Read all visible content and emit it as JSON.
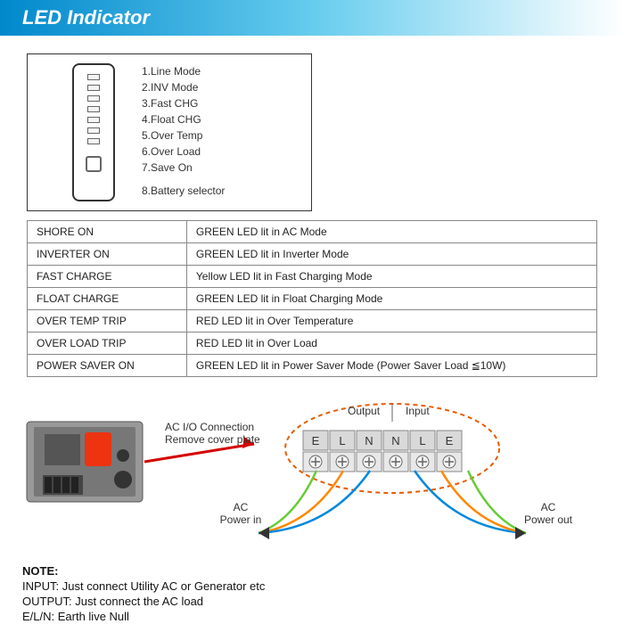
{
  "header": {
    "title": "LED Indicator"
  },
  "legend": {
    "items": [
      "1.Line Mode",
      "2.INV Mode",
      "3.Fast CHG",
      "4.Float CHG",
      "5.Over Temp",
      "6.Over Load",
      "7.Save On",
      "8.Battery selector"
    ],
    "slot_count": 7
  },
  "table": {
    "rows": [
      {
        "label": "SHORE ON",
        "desc": "GREEN LED lit in AC Mode"
      },
      {
        "label": "INVERTER ON",
        "desc": "GREEN LED lit in Inverter Mode"
      },
      {
        "label": "FAST CHARGE",
        "desc": "Yellow LED lit in Fast Charging Mode"
      },
      {
        "label": "FLOAT CHARGE",
        "desc": "GREEN LED lit in Float Charging Mode"
      },
      {
        "label": "OVER TEMP TRIP",
        "desc": "RED LED lit in Over Temperature"
      },
      {
        "label": "OVER LOAD TRIP",
        "desc": "RED LED lit in Over Load"
      },
      {
        "label": "POWER SAVER ON",
        "desc": "GREEN LED lit in Power Saver Mode (Power Saver Load ≦10W)"
      }
    ]
  },
  "diagram": {
    "conn_label1": "AC I/O Connection",
    "conn_label2": "Remove cover plate",
    "output_label": "Output",
    "input_label": "Input",
    "terminals1": [
      "E",
      "L",
      "N",
      "N",
      "L",
      "E"
    ],
    "ac_in": "AC",
    "ac_in2": "Power in",
    "ac_out": "AC",
    "ac_out2": "Power out",
    "colors": {
      "arrow": "#d40000",
      "dash": "#e65c00",
      "term_bg": "#d9d9d9",
      "wire_green": "#66cc33",
      "wire_orange": "#ff8800",
      "wire_blue": "#0088dd",
      "device_body": "#888888",
      "device_dark": "#555555",
      "device_accent": "#ee3311"
    }
  },
  "notes": {
    "title": "NOTE:",
    "lines": [
      "INPUT:  Just connect Utility AC or  Generator etc",
      "OUTPUT: Just connect the AC load",
      "E/L/N: Earth live Null"
    ]
  }
}
